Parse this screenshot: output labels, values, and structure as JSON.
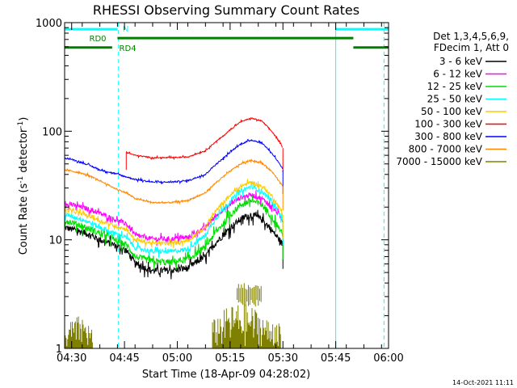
{
  "chart_data": {
    "type": "line",
    "title": "RHESSI Observing Summary Count Rates",
    "xlabel": "Start Time (18-Apr-09 04:28:02)",
    "ylabel_main": "Count Rate (s",
    "ylabel_sup1": "-1",
    "ylabel_mid": " detector",
    "ylabel_sup2": "-1",
    "ylabel_end": ")",
    "y_scale": "log",
    "ylim": [
      1,
      1000
    ],
    "xlim_minutes": [
      0,
      92
    ],
    "x_ticks": [
      {
        "label": "04:30",
        "minute": 2
      },
      {
        "label": "04:45",
        "minute": 17
      },
      {
        "label": "05:00",
        "minute": 32
      },
      {
        "label": "05:15",
        "minute": 47
      },
      {
        "label": "05:30",
        "minute": 62
      },
      {
        "label": "05:45",
        "minute": 77
      },
      {
        "label": "06:00",
        "minute": 92
      }
    ],
    "y_ticks": [
      {
        "label": "1",
        "value": 1
      },
      {
        "label": "10",
        "value": 10
      },
      {
        "label": "100",
        "value": 100
      },
      {
        "label": "1000",
        "value": 1000
      }
    ],
    "legend": {
      "placement": "right",
      "header": [
        "Det 1,3,4,5,6,9,",
        "FDecim 1, Att 0"
      ],
      "entries": [
        {
          "label": "3 - 6 keV",
          "color": "#000000"
        },
        {
          "label": "6 - 12 keV",
          "color": "#ff00ff"
        },
        {
          "label": "12 - 25 keV",
          "color": "#00dd00"
        },
        {
          "label": "25 - 50 keV",
          "color": "#00ffff"
        },
        {
          "label": "50 - 100 keV",
          "color": "#ffcc00"
        },
        {
          "label": "100 - 300 keV",
          "color": "#ff0000"
        },
        {
          "label": "300 - 800 keV",
          "color": "#0000ff"
        },
        {
          "label": "800 - 7000 keV",
          "color": "#ff8800"
        },
        {
          "label": "7000 - 15000 keV",
          "color": "#808000"
        }
      ]
    },
    "series": [
      {
        "name": "3 - 6 keV",
        "color": "#000000",
        "noise": 0.07,
        "points": [
          [
            0,
            13
          ],
          [
            2,
            12.5
          ],
          [
            6,
            11.5
          ],
          [
            10,
            10
          ],
          [
            14,
            9
          ],
          [
            17.5,
            8
          ],
          [
            20,
            6
          ],
          [
            25,
            5.2
          ],
          [
            30,
            5.2
          ],
          [
            35,
            5.5
          ],
          [
            40,
            7
          ],
          [
            45,
            11
          ],
          [
            50,
            15.5
          ],
          [
            53,
            17
          ],
          [
            56,
            15.5
          ],
          [
            59,
            12
          ],
          [
            62,
            9
          ]
        ]
      },
      {
        "name": "6 - 12 keV",
        "color": "#ff00ff",
        "noise": 0.05,
        "points": [
          [
            0,
            22
          ],
          [
            2,
            21
          ],
          [
            6,
            19.5
          ],
          [
            10,
            17.5
          ],
          [
            14,
            15.5
          ],
          [
            17.5,
            14
          ],
          [
            20,
            11
          ],
          [
            25,
            10.2
          ],
          [
            30,
            10.2
          ],
          [
            35,
            10.5
          ],
          [
            40,
            13
          ],
          [
            45,
            19
          ],
          [
            50,
            24.5
          ],
          [
            53,
            26
          ],
          [
            56,
            24
          ],
          [
            59,
            20
          ],
          [
            62,
            15
          ]
        ]
      },
      {
        "name": "12 - 25 keV",
        "color": "#00dd00",
        "noise": 0.07,
        "points": [
          [
            0,
            15
          ],
          [
            2,
            14.5
          ],
          [
            6,
            13
          ],
          [
            10,
            11.5
          ],
          [
            14,
            10
          ],
          [
            17.5,
            9
          ],
          [
            20,
            7
          ],
          [
            25,
            6.3
          ],
          [
            30,
            6.2
          ],
          [
            35,
            6.6
          ],
          [
            40,
            8.5
          ],
          [
            45,
            14
          ],
          [
            50,
            21
          ],
          [
            53,
            23
          ],
          [
            56,
            21
          ],
          [
            59,
            16
          ],
          [
            62,
            11
          ]
        ]
      },
      {
        "name": "25 - 50 keV",
        "color": "#00ffff",
        "noise": 0.05,
        "points": [
          [
            0,
            17
          ],
          [
            2,
            16.5
          ],
          [
            6,
            15
          ],
          [
            10,
            13
          ],
          [
            14,
            11.5
          ],
          [
            17.5,
            10.5
          ],
          [
            20,
            8.5
          ],
          [
            25,
            7.8
          ],
          [
            30,
            7.8
          ],
          [
            35,
            8.2
          ],
          [
            40,
            11
          ],
          [
            45,
            19
          ],
          [
            50,
            28
          ],
          [
            53,
            31
          ],
          [
            56,
            28
          ],
          [
            59,
            22
          ],
          [
            62,
            15
          ]
        ]
      },
      {
        "name": "50 - 100 keV",
        "color": "#ffcc00",
        "noise": 0.04,
        "points": [
          [
            0,
            19
          ],
          [
            2,
            18.5
          ],
          [
            6,
            17
          ],
          [
            10,
            15
          ],
          [
            14,
            13.5
          ],
          [
            17.5,
            12.5
          ],
          [
            20,
            10
          ],
          [
            25,
            9.3
          ],
          [
            30,
            9.3
          ],
          [
            35,
            9.8
          ],
          [
            40,
            13
          ],
          [
            45,
            22
          ],
          [
            50,
            31
          ],
          [
            53,
            34
          ],
          [
            56,
            31
          ],
          [
            59,
            25
          ],
          [
            62,
            17
          ]
        ]
      },
      {
        "name": "100 - 300 keV",
        "color": "#ff0000",
        "noise": 0.012,
        "points": [
          [
            17.5,
            64
          ],
          [
            20,
            60
          ],
          [
            25,
            57
          ],
          [
            30,
            57
          ],
          [
            35,
            58
          ],
          [
            40,
            66
          ],
          [
            45,
            90
          ],
          [
            50,
            122
          ],
          [
            53,
            132
          ],
          [
            56,
            124
          ],
          [
            59,
            98
          ],
          [
            62,
            70
          ]
        ]
      },
      {
        "name": "300 - 800 keV",
        "color": "#0000ff",
        "noise": 0.015,
        "points": [
          [
            0,
            57
          ],
          [
            2,
            55
          ],
          [
            6,
            50
          ],
          [
            10,
            44
          ],
          [
            14,
            41
          ],
          [
            17.5,
            38
          ],
          [
            20,
            36
          ],
          [
            25,
            34
          ],
          [
            30,
            34
          ],
          [
            35,
            35
          ],
          [
            40,
            40
          ],
          [
            45,
            56
          ],
          [
            50,
            76
          ],
          [
            53,
            83
          ],
          [
            56,
            78
          ],
          [
            59,
            62
          ],
          [
            62,
            44
          ]
        ]
      },
      {
        "name": "800 - 7000 keV",
        "color": "#ff8800",
        "noise": 0.015,
        "points": [
          [
            0,
            44
          ],
          [
            2,
            43
          ],
          [
            6,
            40
          ],
          [
            10,
            35
          ],
          [
            14,
            30
          ],
          [
            17.5,
            27
          ],
          [
            20,
            24
          ],
          [
            25,
            22
          ],
          [
            30,
            22
          ],
          [
            35,
            23
          ],
          [
            40,
            27
          ],
          [
            45,
            38
          ],
          [
            50,
            50
          ],
          [
            53,
            54
          ],
          [
            56,
            51
          ],
          [
            59,
            42
          ],
          [
            62,
            31
          ]
        ]
      },
      {
        "name": "7000 - 15000 keV",
        "color": "#808000",
        "noise": 0.0,
        "points": []
      }
    ],
    "flags": [
      {
        "label": "N",
        "color": "#00ffff",
        "y_value": 870,
        "segments": [
          [
            0,
            15
          ],
          [
            77,
            92
          ]
        ]
      },
      {
        "label": "RD0",
        "color": "#008000",
        "y_value": 720,
        "segments": [
          [
            15,
            82
          ]
        ]
      },
      {
        "label": "RD4",
        "color": "#008000",
        "y_value": 590,
        "segments": [
          [
            0,
            13.5
          ],
          [
            82,
            92
          ]
        ]
      }
    ],
    "vertical_markers": [
      {
        "minute": 0,
        "style": "solid",
        "color": "#00ffff"
      },
      {
        "minute": 15.3,
        "style": "dashed",
        "color": "#00ffff"
      },
      {
        "minute": 77,
        "style": "solid",
        "color": "#00ffff"
      },
      {
        "minute": 90.7,
        "style": "dashed",
        "color": "#00ffff"
      }
    ],
    "timestamp": "14-Oct-2021 11:11"
  }
}
